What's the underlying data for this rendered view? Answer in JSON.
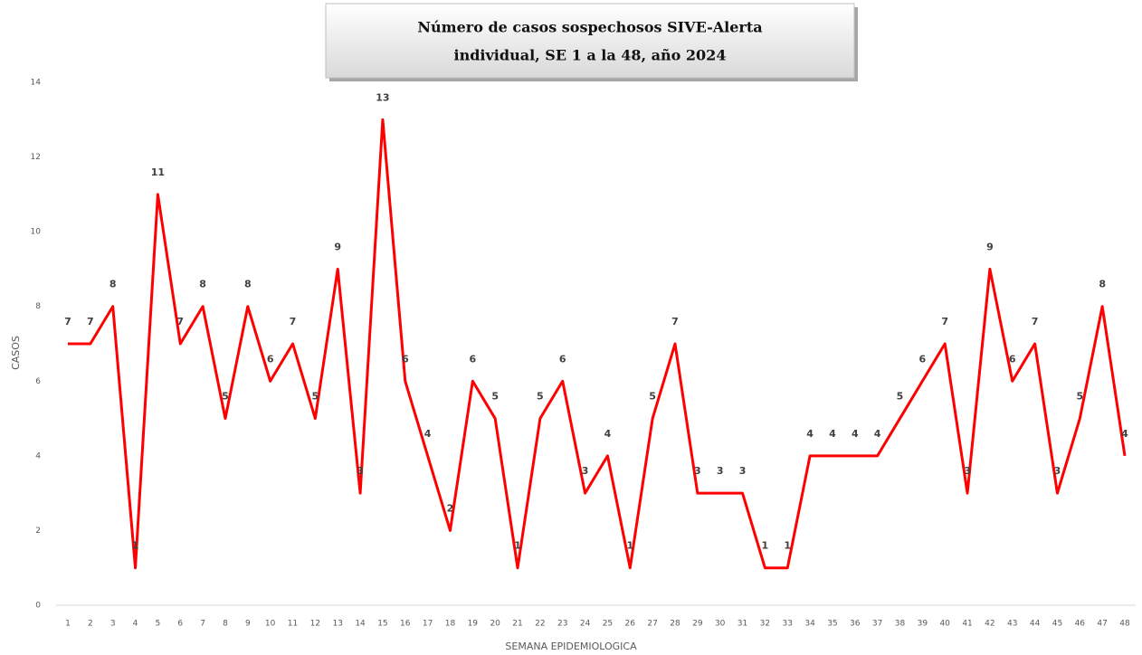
{
  "chart_data": {
    "type": "line",
    "title": [
      "Número de casos sospechosos SIVE-Alerta",
      "individual, SE 1 a la 48, año 2024"
    ],
    "xlabel": "SEMANA EPIDEMIOLOGICA",
    "ylabel": "CASOS",
    "categories": [
      "1",
      "2",
      "3",
      "4",
      "5",
      "6",
      "7",
      "8",
      "9",
      "10",
      "11",
      "12",
      "13",
      "14",
      "15",
      "16",
      "17",
      "18",
      "19",
      "20",
      "21",
      "22",
      "23",
      "24",
      "25",
      "26",
      "27",
      "28",
      "29",
      "30",
      "31",
      "32",
      "33",
      "34",
      "35",
      "36",
      "37",
      "38",
      "39",
      "40",
      "41",
      "42",
      "43",
      "44",
      "45",
      "46",
      "47",
      "48"
    ],
    "values": [
      7,
      7,
      8,
      1,
      11,
      7,
      8,
      5,
      8,
      6,
      7,
      5,
      9,
      3,
      13,
      6,
      4,
      2,
      6,
      5,
      1,
      5,
      6,
      3,
      4,
      1,
      5,
      7,
      3,
      3,
      3,
      1,
      1,
      4,
      4,
      4,
      4,
      5,
      6,
      7,
      3,
      9,
      6,
      7,
      3,
      5,
      8,
      4
    ],
    "color": "#ff0000",
    "ylim": [
      0,
      14
    ],
    "yticks": [
      0,
      2,
      4,
      6,
      8,
      10,
      12,
      14
    ]
  }
}
